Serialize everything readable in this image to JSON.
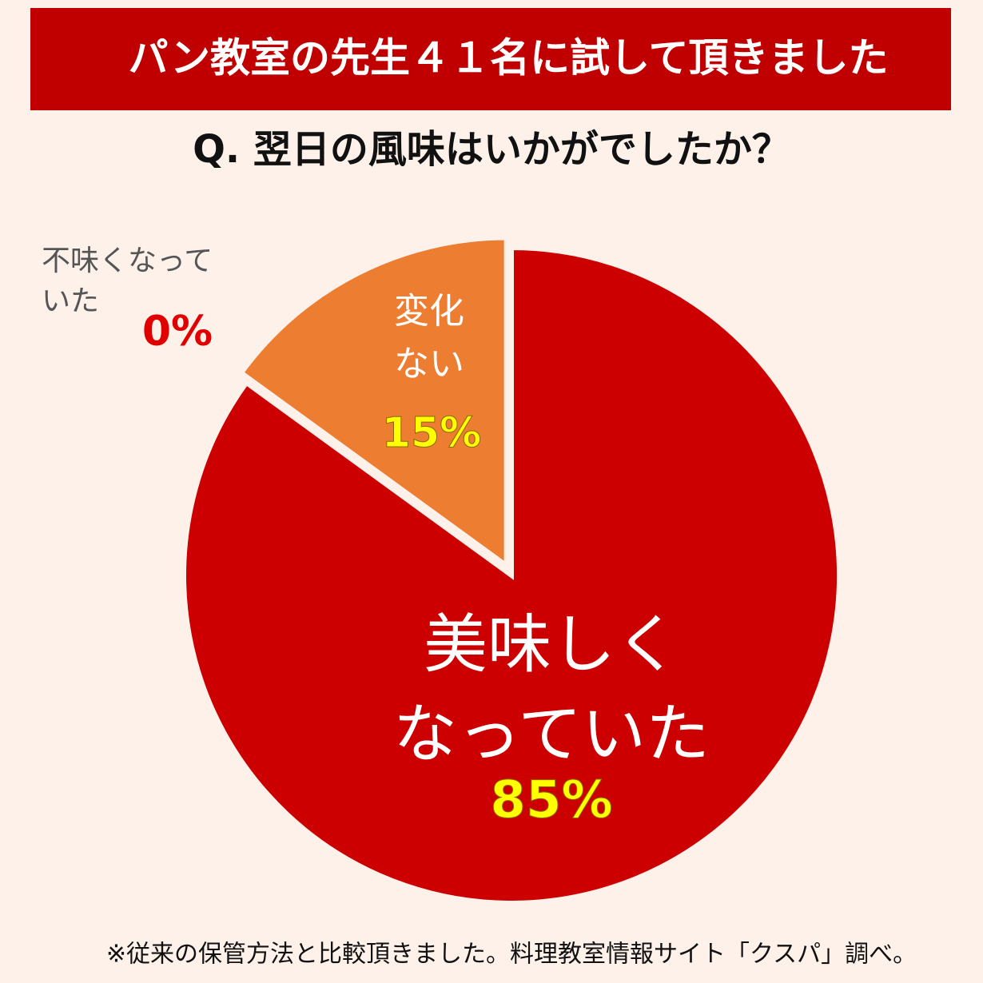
{
  "chart_data": {
    "type": "pie",
    "title": "パン教室の先生４１名に試して頂きました",
    "subtitle": "Q. 翌日の風味はいかがでしたか？",
    "note": "※従来の保管方法と比較頂きました。料理教室情報サイト「クスパ」調べ。",
    "categories": [
      "美味しく\nなっていた",
      "変化\nない",
      "不味くなって\nいた"
    ],
    "values": [
      85,
      15,
      0
    ],
    "value_labels": [
      "85%",
      "15%",
      "0%"
    ],
    "colors": [
      "#cc0000",
      "#ed7d31",
      "#a5a5a5"
    ]
  }
}
